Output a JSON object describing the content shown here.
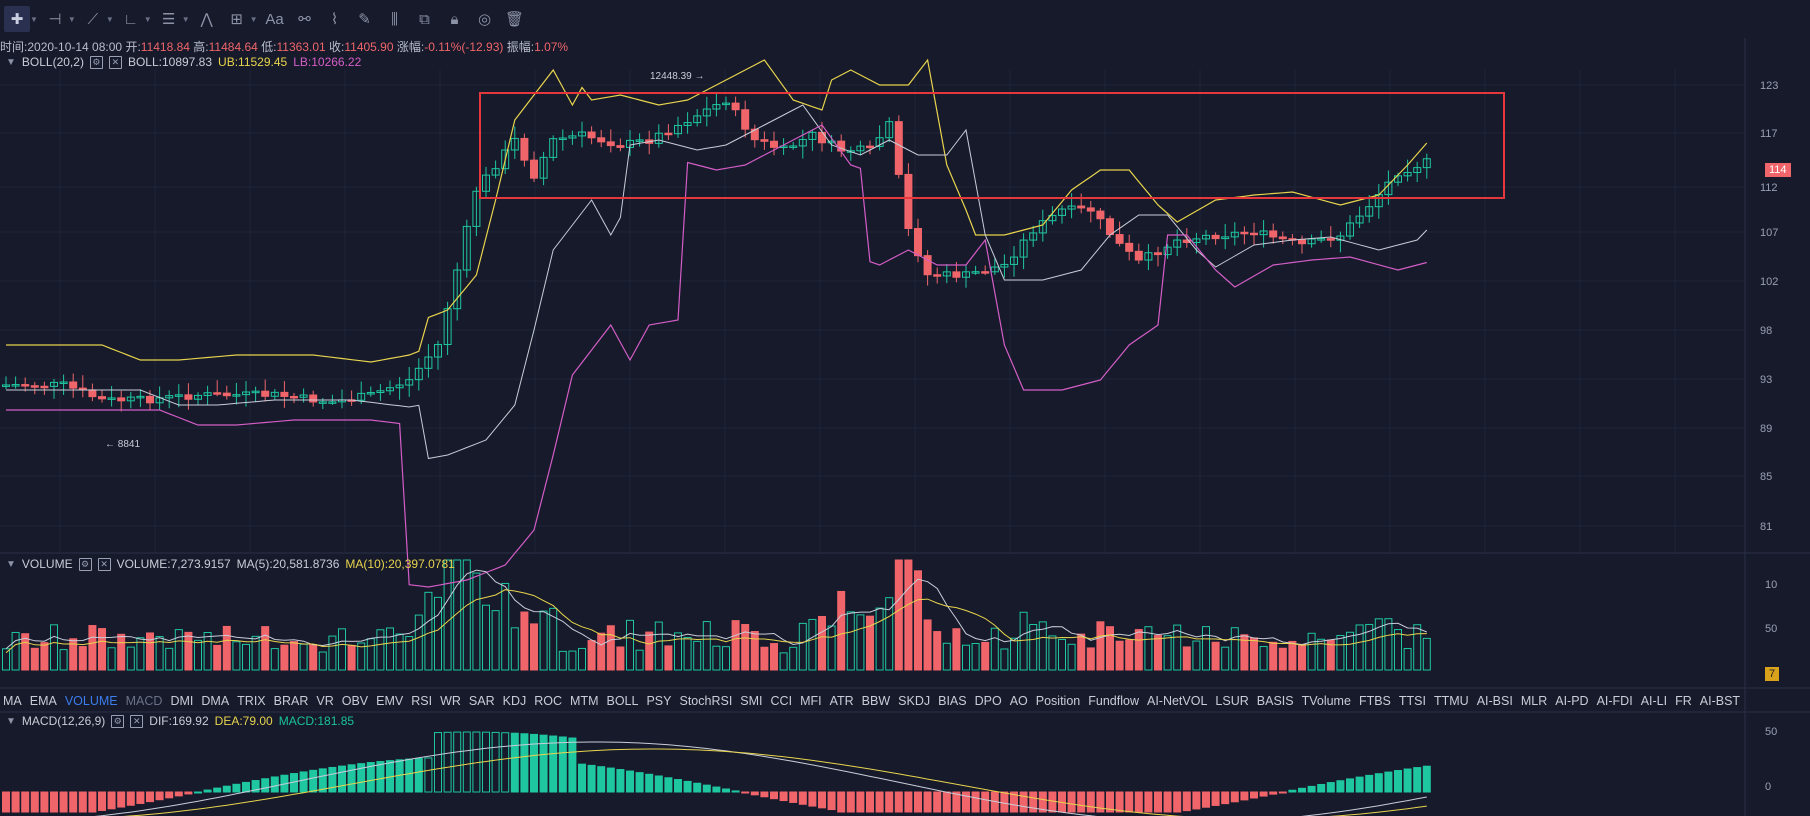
{
  "toolbar": {
    "tools": [
      "crosshair-icon",
      "horizontal-line-icon",
      "trend-line-icon",
      "angle-icon",
      "parallel-lines-icon",
      "zigzag-icon",
      "frame-icon",
      "text-icon",
      "pattern-icon",
      "ruler-icon",
      "brush-icon",
      "bars-icon",
      "copy-icon",
      "lock-icon",
      "eye-icon",
      "trash-icon"
    ],
    "text_tool_label": "Aa"
  },
  "info": {
    "time_label": "时间:",
    "time": "2020-10-14 08:00",
    "open_label": "开:",
    "open": "11418.84",
    "high_label": "高:",
    "high": "11484.64",
    "low_label": "低:",
    "low": "11363.01",
    "close_label": "收:",
    "close": "11405.90",
    "change_label": "涨幅:",
    "change": "-0.11%(-12.93)",
    "amp_label": "振幅:",
    "amp": "1.07%"
  },
  "boll": {
    "name": "BOLL(20,2)",
    "mid": "BOLL:10897.83",
    "ub": "UB:11529.45",
    "lb": "LB:10266.22"
  },
  "volume": {
    "name": "VOLUME",
    "vol": "VOLUME:7,273.9157",
    "ma5": "MA(5):20,581.8736",
    "ma10": "MA(10):20,397.0781"
  },
  "macd": {
    "name": "MACD(12,26,9)",
    "dif": "DIF:169.92",
    "dea": "DEA:79.00",
    "macd": "MACD:181.85"
  },
  "annotations": {
    "high_marker": "12448.39 →",
    "low_marker": "← 8841"
  },
  "price_axis": [
    "123",
    "117",
    "112",
    "107",
    "102",
    "98",
    "93",
    "89",
    "85",
    "81"
  ],
  "current_price_tag": "114",
  "volume_axis": [
    "10",
    "50"
  ],
  "volume_tag": "7",
  "macd_axis": [
    "50",
    "0"
  ],
  "tabs": [
    "MA",
    "EMA",
    "VOLUME",
    "MACD",
    "DMI",
    "DMA",
    "TRIX",
    "BRAR",
    "VR",
    "OBV",
    "EMV",
    "RSI",
    "WR",
    "SAR",
    "KDJ",
    "ROC",
    "MTM",
    "BOLL",
    "PSY",
    "StochRSI",
    "SMI",
    "CCI",
    "MFI",
    "ATR",
    "BBW",
    "SKDJ",
    "BIAS",
    "DPO",
    "AO",
    "Position",
    "Fundflow",
    "AI-NetVOL",
    "LSUR",
    "BASIS",
    "TVolume",
    "FTBS",
    "TTSI",
    "TTMU",
    "AI-BSI",
    "MLR",
    "AI-PD",
    "AI-FDI",
    "AI-LI",
    "FR",
    "AI-BST"
  ],
  "selected_tab": "VOLUME",
  "dim_tab": "MACD",
  "colors": {
    "background": "#161a2b",
    "up": "#1fc7a0",
    "down": "#f0656a",
    "ub": "#e8d44d",
    "lb": "#d45dc6",
    "mid": "#c9cdd8",
    "highlight_box": "#e5383d"
  }
}
